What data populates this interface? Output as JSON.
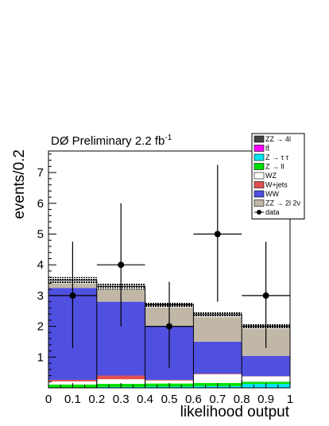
{
  "chart_data": {
    "type": "bar",
    "title": "DØ Preliminary 2.2 fb",
    "title_superscript": "-1",
    "xlabel": "likelihood output",
    "ylabel": "events/0.2",
    "xlim": [
      0,
      1
    ],
    "ylim": [
      0,
      7.7
    ],
    "x_ticks": [
      "0",
      "0.1",
      "0.2",
      "0.3",
      "0.4",
      "0.5",
      "0.6",
      "0.7",
      "0.8",
      "0.9",
      "1"
    ],
    "y_ticks": [
      "1",
      "2",
      "3",
      "4",
      "5",
      "6",
      "7"
    ],
    "bin_edges": [
      0,
      0.2,
      0.4,
      0.6,
      0.8,
      1.0
    ],
    "stack_order": [
      "ZZ → 4l",
      "tt̄",
      "Z → τ τ",
      "Z → ll",
      "WZ",
      "W+jets",
      "WW",
      "ZZ → 2l 2ν"
    ],
    "series": [
      {
        "name": "ZZ → 4l",
        "color": "#444444",
        "values": [
          0.0,
          0.0,
          0.0,
          0.0,
          0.0
        ]
      },
      {
        "name": "tt̄",
        "color": "#ff00ff",
        "values": [
          0.01,
          0.01,
          0.01,
          0.01,
          0.01
        ]
      },
      {
        "name": "Z → τ τ",
        "color": "#00e5f0",
        "values": [
          0.0,
          0.02,
          0.03,
          0.05,
          0.12
        ]
      },
      {
        "name": "Z → ll",
        "color": "#00e000",
        "values": [
          0.1,
          0.1,
          0.1,
          0.1,
          0.07
        ]
      },
      {
        "name": "WZ",
        "color": "#ffffff",
        "values": [
          0.1,
          0.15,
          0.1,
          0.28,
          0.17
        ]
      },
      {
        "name": "W+jets",
        "color": "#e05050",
        "values": [
          0.05,
          0.12,
          0.02,
          0.02,
          0.01
        ]
      },
      {
        "name": "WW",
        "color": "#5050e0",
        "values": [
          2.99,
          2.4,
          1.74,
          1.04,
          0.66
        ]
      },
      {
        "name": "ZZ → 2l 2ν",
        "color": "#c1b7a7",
        "values": [
          0.25,
          0.5,
          0.7,
          0.88,
          0.96
        ]
      }
    ],
    "mc_uncertainty": [
      0.1,
      0.1,
      0.08,
      0.08,
      0.08
    ],
    "data": {
      "name": "data",
      "x": [
        0.1,
        0.3,
        0.5,
        0.7,
        0.9
      ],
      "y": [
        3,
        4,
        2,
        5,
        3
      ],
      "yerr_low": [
        1.7,
        2.0,
        1.35,
        2.2,
        1.7
      ],
      "yerr_high": [
        1.75,
        2.0,
        1.45,
        2.25,
        1.75
      ],
      "xerr": 0.1
    },
    "legend": {
      "placement": "top-right",
      "entries": [
        {
          "label": "ZZ → 4l",
          "color": "#444444",
          "style": "box"
        },
        {
          "label": "tt̄",
          "color": "#ff00ff",
          "style": "box"
        },
        {
          "label": "Z → τ τ",
          "color": "#00e5f0",
          "style": "box"
        },
        {
          "label": "Z → ll",
          "color": "#00e000",
          "style": "box"
        },
        {
          "label": "WZ",
          "color": "#ffffff",
          "style": "box"
        },
        {
          "label": "W+jets",
          "color": "#e05050",
          "style": "box"
        },
        {
          "label": "WW",
          "color": "#5050e0",
          "style": "box"
        },
        {
          "label": "ZZ → 2l 2ν",
          "color": "#c1b7a7",
          "style": "box"
        },
        {
          "label": "data",
          "color": "#000000",
          "style": "marker"
        }
      ]
    },
    "grid": false
  }
}
